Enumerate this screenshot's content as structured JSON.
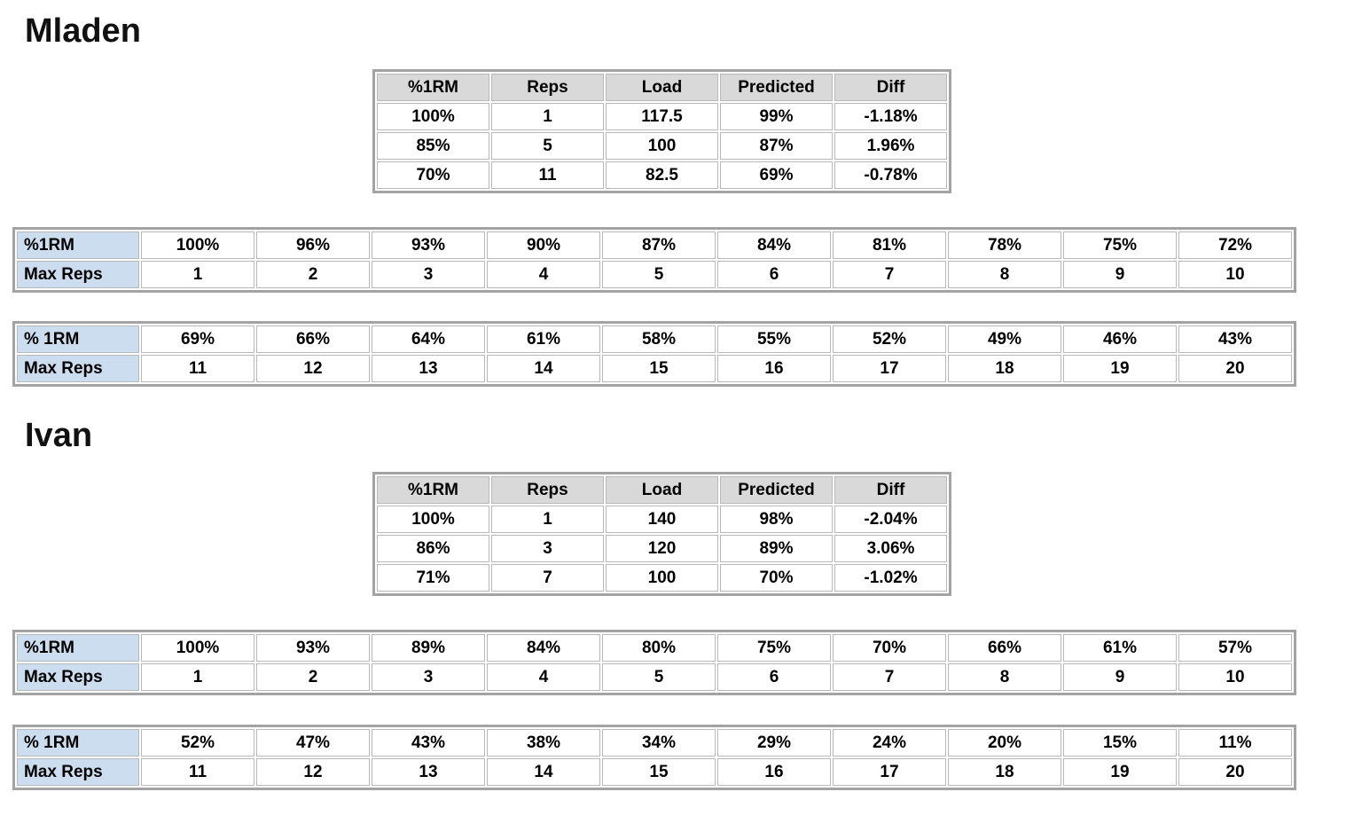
{
  "colors": {
    "summary_header_bg": "#d9d9d9",
    "row_label_bg": "#cdddf0",
    "outer_border": "#a3a3a3",
    "cell_border": "#b8b8b8",
    "text": "#000000"
  },
  "people": [
    {
      "name": "Mladen",
      "summary": {
        "headers": [
          "%1RM",
          "Reps",
          "Load",
          "Predicted",
          "Diff"
        ],
        "rows": [
          [
            "100%",
            "1",
            "117.5",
            "99%",
            "-1.18%"
          ],
          [
            "85%",
            "5",
            "100",
            "87%",
            "1.96%"
          ],
          [
            "70%",
            "11",
            "82.5",
            "69%",
            "-0.78%"
          ]
        ]
      },
      "rep_tables": [
        {
          "pct_label": "%1RM",
          "reps_label": "Max Reps",
          "pcts": [
            "100%",
            "96%",
            "93%",
            "90%",
            "87%",
            "84%",
            "81%",
            "78%",
            "75%",
            "72%"
          ],
          "reps": [
            "1",
            "2",
            "3",
            "4",
            "5",
            "6",
            "7",
            "8",
            "9",
            "10"
          ]
        },
        {
          "pct_label": "% 1RM",
          "reps_label": "Max Reps",
          "pcts": [
            "69%",
            "66%",
            "64%",
            "61%",
            "58%",
            "55%",
            "52%",
            "49%",
            "46%",
            "43%"
          ],
          "reps": [
            "11",
            "12",
            "13",
            "14",
            "15",
            "16",
            "17",
            "18",
            "19",
            "20"
          ]
        }
      ]
    },
    {
      "name": "Ivan",
      "summary": {
        "headers": [
          "%1RM",
          "Reps",
          "Load",
          "Predicted",
          "Diff"
        ],
        "rows": [
          [
            "100%",
            "1",
            "140",
            "98%",
            "-2.04%"
          ],
          [
            "86%",
            "3",
            "120",
            "89%",
            "3.06%"
          ],
          [
            "71%",
            "7",
            "100",
            "70%",
            "-1.02%"
          ]
        ]
      },
      "rep_tables": [
        {
          "pct_label": "%1RM",
          "reps_label": "Max Reps",
          "pcts": [
            "100%",
            "93%",
            "89%",
            "84%",
            "80%",
            "75%",
            "70%",
            "66%",
            "61%",
            "57%"
          ],
          "reps": [
            "1",
            "2",
            "3",
            "4",
            "5",
            "6",
            "7",
            "8",
            "9",
            "10"
          ]
        },
        {
          "pct_label": "% 1RM",
          "reps_label": "Max Reps",
          "pcts": [
            "52%",
            "47%",
            "43%",
            "38%",
            "34%",
            "29%",
            "24%",
            "20%",
            "15%",
            "11%"
          ],
          "reps": [
            "11",
            "12",
            "13",
            "14",
            "15",
            "16",
            "17",
            "18",
            "19",
            "20"
          ]
        }
      ]
    }
  ]
}
